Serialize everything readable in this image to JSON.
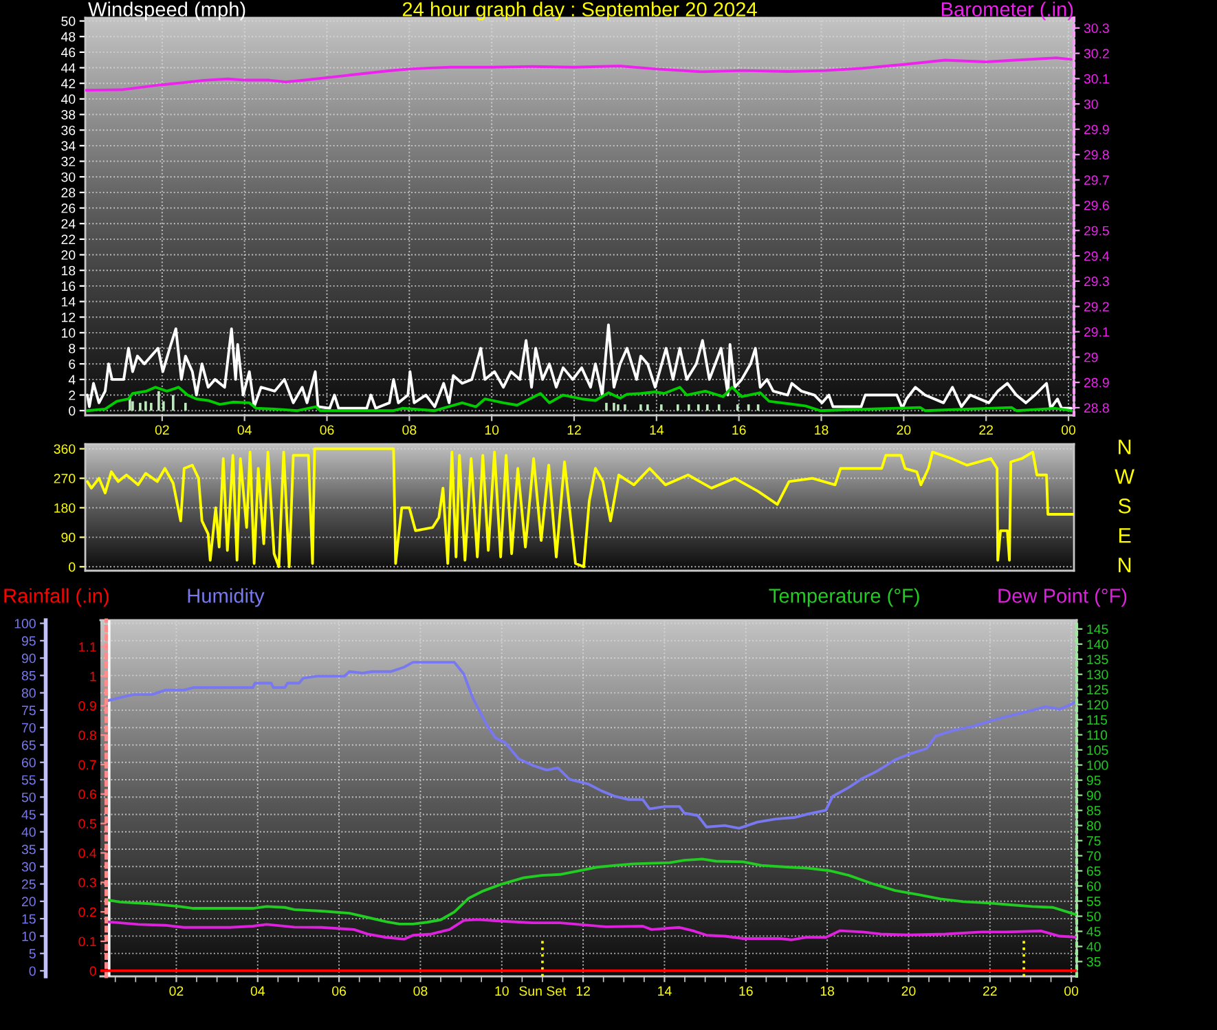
{
  "chart_data": [
    {
      "type": "line",
      "title": "24 hour graph day : September 20 2024",
      "legend": "top",
      "grid": true,
      "xlim": [
        "2024-09-20T00:08",
        "2024-09-21T00:08"
      ],
      "xticks": [
        {
          "value": "2024-09-20T02:00",
          "label": "02"
        },
        {
          "value": "2024-09-20T04:00",
          "label": "04"
        },
        {
          "value": "2024-09-20T06:00",
          "label": "06"
        },
        {
          "value": "2024-09-20T08:00",
          "label": "08"
        },
        {
          "value": "2024-09-20T10:00",
          "label": "10"
        },
        {
          "value": "2024-09-20T12:00",
          "label": "12"
        },
        {
          "value": "2024-09-20T14:00",
          "label": "14"
        },
        {
          "value": "2024-09-20T16:00",
          "label": "16"
        },
        {
          "value": "2024-09-20T18:00",
          "label": "18"
        },
        {
          "value": "2024-09-20T20:00",
          "label": "20"
        },
        {
          "value": "2024-09-20T22:00",
          "label": "22"
        },
        {
          "value": "2024-09-21T00:00",
          "label": "00"
        }
      ],
      "ylim": [
        -0.6,
        50.4
      ],
      "yticks": [
        0,
        2,
        4,
        6,
        8,
        10,
        12,
        14,
        16,
        18,
        20,
        22,
        24,
        26,
        28,
        30,
        32,
        34,
        36,
        38,
        40,
        42,
        44,
        46,
        48,
        50
      ],
      "y2lim": [
        28.77,
        30.34
      ],
      "y2ticks": [
        28.8,
        28.9,
        29,
        29.1,
        29.2,
        29.3,
        29.4,
        29.5,
        29.6,
        29.7,
        29.8,
        29.9,
        30,
        30.1,
        30.2,
        30.3
      ],
      "series": [
        {
          "name": "Windspeed (mph)",
          "color": "#ffffff",
          "x": [
            "2024-09-20T00:11",
            "2024-09-20T00:14",
            "2024-09-20T00:20",
            "2024-09-20T00:28",
            "2024-09-20T00:37",
            "2024-09-20T00:42",
            "2024-09-20T00:47",
            "2024-09-20T01:04",
            "2024-09-20T01:11",
            "2024-09-20T01:17",
            "2024-09-20T01:24",
            "2024-09-20T01:34",
            "2024-09-20T01:44",
            "2024-09-20T01:54",
            "2024-09-20T02:01",
            "2024-09-20T02:11",
            "2024-09-20T02:20",
            "2024-09-20T02:28",
            "2024-09-20T02:34",
            "2024-09-20T02:44",
            "2024-09-20T02:50",
            "2024-09-20T02:58",
            "2024-09-20T03:07",
            "2024-09-20T03:17",
            "2024-09-20T03:31",
            "2024-09-20T03:41",
            "2024-09-20T03:47",
            "2024-09-20T03:50",
            "2024-09-20T03:58",
            "2024-09-20T04:07",
            "2024-09-20T04:14",
            "2024-09-20T04:24",
            "2024-09-20T04:44",
            "2024-09-20T04:58",
            "2024-09-20T05:11",
            "2024-09-20T05:24",
            "2024-09-20T05:31",
            "2024-09-20T05:43",
            "2024-09-20T05:47",
            "2024-09-20T06:04",
            "2024-09-20T06:11",
            "2024-09-20T06:17",
            "2024-09-20T06:58",
            "2024-09-20T07:04",
            "2024-09-20T07:11",
            "2024-09-20T07:31",
            "2024-09-20T07:37",
            "2024-09-20T07:44",
            "2024-09-20T07:58",
            "2024-09-20T08:01",
            "2024-09-20T08:07",
            "2024-09-20T08:24",
            "2024-09-20T08:37",
            "2024-09-20T08:50",
            "2024-09-20T08:58",
            "2024-09-20T09:04",
            "2024-09-20T09:17",
            "2024-09-20T09:31",
            "2024-09-20T09:44",
            "2024-09-20T09:50",
            "2024-09-20T10:04",
            "2024-09-20T10:17",
            "2024-09-20T10:28",
            "2024-09-20T10:41",
            "2024-09-20T10:50",
            "2024-09-20T10:58",
            "2024-09-20T11:04",
            "2024-09-20T11:14",
            "2024-09-20T11:24",
            "2024-09-20T11:34",
            "2024-09-20T11:44",
            "2024-09-20T11:58",
            "2024-09-20T12:11",
            "2024-09-20T12:24",
            "2024-09-20T12:31",
            "2024-09-20T12:41",
            "2024-09-20T12:50",
            "2024-09-20T12:58",
            "2024-09-20T13:07",
            "2024-09-20T13:17",
            "2024-09-20T13:31",
            "2024-09-20T13:37",
            "2024-09-20T13:47",
            "2024-09-20T13:58",
            "2024-09-20T14:14",
            "2024-09-20T14:24",
            "2024-09-20T14:34",
            "2024-09-20T14:44",
            "2024-09-20T14:58",
            "2024-09-20T15:07",
            "2024-09-20T15:17",
            "2024-09-20T15:34",
            "2024-09-20T15:44",
            "2024-09-20T15:47",
            "2024-09-20T15:54",
            "2024-09-20T16:04",
            "2024-09-20T16:17",
            "2024-09-20T16:24",
            "2024-09-20T16:31",
            "2024-09-20T16:41",
            "2024-09-20T16:50",
            "2024-09-20T17:11",
            "2024-09-20T17:17",
            "2024-09-20T17:31",
            "2024-09-20T17:50",
            "2024-09-20T18:01",
            "2024-09-20T18:11",
            "2024-09-20T18:17",
            "2024-09-20T18:58",
            "2024-09-20T19:04",
            "2024-09-20T19:50",
            "2024-09-20T19:58",
            "2024-09-20T20:04",
            "2024-09-20T20:17",
            "2024-09-20T20:31",
            "2024-09-20T20:58",
            "2024-09-20T21:11",
            "2024-09-20T21:24",
            "2024-09-20T21:37",
            "2024-09-20T22:04",
            "2024-09-20T22:17",
            "2024-09-20T22:31",
            "2024-09-20T22:44",
            "2024-09-20T22:58",
            "2024-09-20T23:11",
            "2024-09-20T23:28",
            "2024-09-20T23:34",
            "2024-09-20T23:44",
            "2024-09-20T23:50",
            "2024-09-21T00:04"
          ],
          "values": [
            2,
            0.5,
            3.5,
            1,
            2.5,
            6,
            4,
            4,
            8,
            5,
            7,
            6,
            7,
            8,
            5,
            8,
            10.5,
            4,
            7,
            5,
            2,
            6,
            3,
            4,
            3,
            10.5,
            4,
            8.5,
            2,
            5,
            0.5,
            3,
            2.5,
            4,
            1,
            3,
            1,
            5,
            0.5,
            0.3,
            2,
            0.3,
            0.3,
            2,
            0.3,
            1,
            4,
            1,
            2,
            5,
            1,
            2,
            0.5,
            3.5,
            1,
            4.5,
            3.5,
            4,
            8,
            4,
            5,
            3,
            5,
            4,
            9,
            3,
            8,
            4,
            6,
            3,
            5.5,
            4,
            5.5,
            3,
            6,
            2,
            11,
            3,
            6,
            8,
            4,
            7,
            6,
            3,
            8,
            4,
            8,
            4,
            6,
            9,
            4,
            8,
            2,
            8.5,
            3,
            4,
            6,
            8,
            3,
            4,
            2.5,
            2,
            3.5,
            2.5,
            2,
            1,
            2,
            0.5,
            0.5,
            2,
            2,
            0.3,
            1.5,
            3,
            2,
            1,
            3,
            0.5,
            2,
            1,
            2.5,
            3.5,
            2,
            1,
            2,
            3.5,
            0.3,
            1.5,
            0.3,
            0.3
          ]
        },
        {
          "type": "bar",
          "color": "#c0e8c0",
          "x": [
            "2024-09-20T01:13",
            "2024-09-20T01:17",
            "2024-09-20T01:28",
            "2024-09-20T01:36",
            "2024-09-20T01:44",
            "2024-09-20T01:55",
            "2024-09-20T02:02",
            "2024-09-20T02:16",
            "2024-09-20T02:34",
            "2024-09-20T12:47",
            "2024-09-20T12:58",
            "2024-09-20T13:04",
            "2024-09-20T13:14",
            "2024-09-20T13:37",
            "2024-09-20T13:47",
            "2024-09-20T14:07",
            "2024-09-20T14:31",
            "2024-09-20T14:47",
            "2024-09-20T15:01",
            "2024-09-20T15:14",
            "2024-09-20T15:31",
            "2024-09-20T15:58",
            "2024-09-20T16:14",
            "2024-09-20T16:28"
          ],
          "values": [
            1.8,
            1.2,
            1,
            1.2,
            1,
            2.5,
            1.2,
            2,
            1,
            1,
            1,
            0.8,
            0.8,
            0.8,
            0.8,
            0.8,
            0.8,
            0.8,
            0.8,
            0.8,
            0.8,
            0.8,
            0.8,
            0.8
          ]
        },
        {
          "color": "#00cc00",
          "x": [
            "2024-09-20T00:11",
            "2024-09-20T00:37",
            "2024-09-20T00:54",
            "2024-09-20T01:11",
            "2024-09-20T01:17",
            "2024-09-20T01:37",
            "2024-09-20T01:50",
            "2024-09-20T02:07",
            "2024-09-20T02:24",
            "2024-09-20T02:37",
            "2024-09-20T02:50",
            "2024-09-20T03:07",
            "2024-09-20T03:24",
            "2024-09-20T03:44",
            "2024-09-20T04:07",
            "2024-09-20T04:17",
            "2024-09-20T04:44",
            "2024-09-20T05:17",
            "2024-09-20T05:44",
            "2024-09-20T05:50",
            "2024-09-20T07:37",
            "2024-09-20T07:50",
            "2024-09-20T08:37",
            "2024-09-20T09:17",
            "2024-09-20T09:37",
            "2024-09-20T09:50",
            "2024-09-20T10:17",
            "2024-09-20T10:37",
            "2024-09-20T11:11",
            "2024-09-20T11:24",
            "2024-09-20T11:44",
            "2024-09-20T12:11",
            "2024-09-20T12:31",
            "2024-09-20T12:50",
            "2024-09-20T13:07",
            "2024-09-20T13:17",
            "2024-09-20T13:37",
            "2024-09-20T13:58",
            "2024-09-20T14:11",
            "2024-09-20T14:34",
            "2024-09-20T14:44",
            "2024-09-20T15:11",
            "2024-09-20T15:37",
            "2024-09-20T15:50",
            "2024-09-20T16:04",
            "2024-09-20T16:31",
            "2024-09-20T16:44",
            "2024-09-20T17:11",
            "2024-09-20T17:37",
            "2024-09-20T17:58",
            "2024-09-20T20:24",
            "2024-09-20T20:31",
            "2024-09-20T22:37",
            "2024-09-20T22:44",
            "2024-09-20T23:41",
            "2024-09-21T00:04"
          ],
          "values": [
            0,
            0.2,
            1.2,
            1.5,
            2.2,
            2.5,
            3,
            2.5,
            3,
            2,
            1.5,
            1.3,
            0.8,
            1.1,
            1,
            0.3,
            0.2,
            0,
            0.5,
            0,
            0,
            0.3,
            0,
            1,
            0.5,
            1.5,
            1,
            0.7,
            2.2,
            1,
            2,
            1.5,
            1.3,
            2.3,
            1.6,
            2.1,
            2.2,
            2.4,
            2.2,
            3,
            2,
            2.5,
            1.8,
            3,
            1.8,
            2.3,
            1.2,
            0.9,
            0.6,
            0,
            0.4,
            0,
            0.4,
            0,
            0.3,
            0
          ]
        },
        {
          "name": "Barometer (.in)",
          "color": "#ee22ee",
          "axis": "y2",
          "x": [
            "2024-09-20T00:09",
            "2024-09-20T00:36",
            "2024-09-20T01:00",
            "2024-09-20T01:30",
            "2024-09-20T02:00",
            "2024-09-20T02:30",
            "2024-09-20T03:00",
            "2024-09-20T03:36",
            "2024-09-20T04:00",
            "2024-09-20T04:36",
            "2024-09-20T05:00",
            "2024-09-20T05:30",
            "2024-09-20T06:00",
            "2024-09-20T06:30",
            "2024-09-20T07:00",
            "2024-09-20T07:30",
            "2024-09-20T08:00",
            "2024-09-20T08:30",
            "2024-09-20T09:00",
            "2024-09-20T10:00",
            "2024-09-20T11:00",
            "2024-09-20T12:00",
            "2024-09-20T13:06",
            "2024-09-20T14:00",
            "2024-09-20T15:06",
            "2024-09-20T16:06",
            "2024-09-20T17:12",
            "2024-09-20T18:06",
            "2024-09-20T19:00",
            "2024-09-20T20:00",
            "2024-09-20T21:00",
            "2024-09-20T22:00",
            "2024-09-20T22:42",
            "2024-09-20T23:42",
            "2024-09-21T00:04"
          ],
          "values": [
            30.054,
            30.055,
            30.056,
            30.066,
            30.076,
            30.084,
            30.093,
            30.099,
            30.094,
            30.094,
            30.087,
            30.095,
            30.104,
            30.113,
            30.122,
            30.131,
            30.138,
            30.142,
            30.145,
            30.145,
            30.148,
            30.145,
            30.15,
            30.138,
            30.127,
            30.132,
            30.128,
            30.132,
            30.141,
            30.156,
            30.173,
            30.166,
            30.173,
            30.182,
            30.176
          ]
        }
      ]
    },
    {
      "type": "line",
      "grid": "y",
      "tick_labels": "y",
      "xlim": [
        "2024-09-20T00:08",
        "2024-09-21T00:08"
      ],
      "ylim": [
        -12,
        374
      ],
      "yticks": [
        0,
        90,
        180,
        270,
        360
      ],
      "annotations": [
        "N",
        "W",
        "S",
        "E",
        "N"
      ],
      "series": [
        {
          "color": "#ffff00",
          "x": [
            "2024-09-20T00:11",
            "2024-09-20T00:17",
            "2024-09-20T00:28",
            "2024-09-20T00:37",
            "2024-09-20T00:46",
            "2024-09-20T00:56",
            "2024-09-20T01:08",
            "2024-09-20T01:25",
            "2024-09-20T01:36",
            "2024-09-20T01:53",
            "2024-09-20T02:04",
            "2024-09-20T02:16",
            "2024-09-20T02:27",
            "2024-09-20T02:32",
            "2024-09-20T02:44",
            "2024-09-20T02:53",
            "2024-09-20T02:58",
            "2024-09-20T03:07",
            "2024-09-20T03:10",
            "2024-09-20T03:18",
            "2024-09-20T03:23",
            "2024-09-20T03:29",
            "2024-09-20T03:35",
            "2024-09-20T03:43",
            "2024-09-20T03:49",
            "2024-09-20T03:54",
            "2024-09-20T04:03",
            "2024-09-20T04:08",
            "2024-09-20T04:14",
            "2024-09-20T04:20",
            "2024-09-20T04:28",
            "2024-09-20T04:34",
            "2024-09-20T04:43",
            "2024-09-20T04:50",
            "2024-09-20T04:57",
            "2024-09-20T05:05",
            "2024-09-20T05:11",
            "2024-09-20T05:33",
            "2024-09-20T05:39",
            "2024-09-20T05:42",
            "2024-09-20T07:37",
            "2024-09-20T07:40",
            "2024-09-20T07:43",
            "2024-09-20T07:49",
            "2024-09-20T08:00",
            "2024-09-20T08:09",
            "2024-09-20T08:34",
            "2024-09-20T08:43",
            "2024-09-20T08:49",
            "2024-09-20T08:56",
            "2024-09-20T09:02",
            "2024-09-20T09:08",
            "2024-09-20T09:13",
            "2024-09-20T09:21",
            "2024-09-20T09:30",
            "2024-09-20T09:39",
            "2024-09-20T09:47",
            "2024-09-20T09:55",
            "2024-09-20T10:04",
            "2024-09-20T10:13",
            "2024-09-20T10:21",
            "2024-09-20T10:29",
            "2024-09-20T10:38",
            "2024-09-20T10:49",
            "2024-09-20T11:01",
            "2024-09-20T11:12",
            "2024-09-20T11:23",
            "2024-09-20T11:34",
            "2024-09-20T11:46",
            "2024-09-20T12:02",
            "2024-09-20T12:14",
            "2024-09-20T12:22",
            "2024-09-20T12:31",
            "2024-09-20T12:42",
            "2024-09-20T12:53",
            "2024-09-20T13:05",
            "2024-09-20T13:27",
            "2024-09-20T13:50",
            "2024-09-20T14:13",
            "2024-09-20T14:46",
            "2024-09-20T15:20",
            "2024-09-20T15:54",
            "2024-09-20T16:28",
            "2024-09-20T16:56",
            "2024-09-20T17:13",
            "2024-09-20T17:47",
            "2024-09-20T18:20",
            "2024-09-20T18:28",
            "2024-09-20T19:28",
            "2024-09-20T19:34",
            "2024-09-20T19:56",
            "2024-09-20T20:02",
            "2024-09-20T20:19",
            "2024-09-20T20:25",
            "2024-09-20T20:36",
            "2024-09-20T20:42",
            "2024-09-20T21:10",
            "2024-09-20T21:32",
            "2024-09-20T22:07",
            "2024-09-20T22:16",
            "2024-09-20T22:17",
            "2024-09-20T22:21",
            "2024-09-20T22:31",
            "2024-09-20T22:34",
            "2024-09-20T22:36",
            "2024-09-20T22:52",
            "2024-09-20T23:08",
            "2024-09-20T23:14",
            "2024-09-20T23:28",
            "2024-09-20T23:30",
            "2024-09-21T00:07"
          ],
          "values": [
            260,
            240,
            270,
            225,
            290,
            260,
            280,
            250,
            285,
            260,
            300,
            255,
            140,
            300,
            310,
            270,
            140,
            100,
            20,
            180,
            60,
            330,
            50,
            340,
            20,
            330,
            120,
            350,
            10,
            300,
            70,
            350,
            40,
            0,
            350,
            0,
            340,
            340,
            10,
            360,
            360,
            10,
            70,
            180,
            180,
            110,
            120,
            150,
            240,
            10,
            350,
            30,
            340,
            20,
            330,
            30,
            340,
            50,
            350,
            30,
            340,
            40,
            300,
            60,
            330,
            80,
            310,
            30,
            320,
            10,
            0,
            200,
            300,
            260,
            140,
            280,
            250,
            300,
            250,
            280,
            240,
            270,
            230,
            190,
            260,
            270,
            250,
            300,
            300,
            340,
            340,
            300,
            290,
            250,
            300,
            350,
            330,
            310,
            330,
            300,
            20,
            110,
            110,
            20,
            320,
            330,
            350,
            280,
            280,
            160,
            160
          ]
        }
      ]
    },
    {
      "type": "line",
      "legend": "top",
      "grid": true,
      "xlim": [
        "2024-09-20T00:08",
        "2024-09-21T00:08"
      ],
      "xticks": [
        {
          "value": "2024-09-20T00:30",
          "label": null
        },
        {
          "value": "2024-09-20T01:00",
          "label": null
        },
        {
          "value": "2024-09-20T01:30",
          "label": null
        },
        {
          "value": "2024-09-20T02:00",
          "label": "02"
        },
        {
          "value": "2024-09-20T02:30",
          "label": null
        },
        {
          "value": "2024-09-20T03:00",
          "label": null
        },
        {
          "value": "2024-09-20T03:30",
          "label": null
        },
        {
          "value": "2024-09-20T04:00",
          "label": "04"
        },
        {
          "value": "2024-09-20T04:30",
          "label": null
        },
        {
          "value": "2024-09-20T05:00",
          "label": null
        },
        {
          "value": "2024-09-20T05:30",
          "label": null
        },
        {
          "value": "2024-09-20T06:00",
          "label": "06"
        },
        {
          "value": "2024-09-20T06:30",
          "label": null
        },
        {
          "value": "2024-09-20T07:00",
          "label": null
        },
        {
          "value": "2024-09-20T07:30",
          "label": null
        },
        {
          "value": "2024-09-20T08:00",
          "label": "08"
        },
        {
          "value": "2024-09-20T08:30",
          "label": null
        },
        {
          "value": "2024-09-20T09:00",
          "label": null
        },
        {
          "value": "2024-09-20T09:30",
          "label": null
        },
        {
          "value": "2024-09-20T10:00",
          "label": "10"
        },
        {
          "value": "2024-09-20T10:30",
          "label": null
        },
        {
          "value": "2024-09-20T11:00",
          "label": null
        },
        {
          "value": "2024-09-20T11:30",
          "label": null
        },
        {
          "value": "2024-09-20T12:00",
          "label": "12"
        },
        {
          "value": "2024-09-20T12:30",
          "label": null
        },
        {
          "value": "2024-09-20T13:00",
          "label": null
        },
        {
          "value": "2024-09-20T13:30",
          "label": null
        },
        {
          "value": "2024-09-20T14:00",
          "label": "14"
        },
        {
          "value": "2024-09-20T14:30",
          "label": null
        },
        {
          "value": "2024-09-20T15:00",
          "label": null
        },
        {
          "value": "2024-09-20T15:30",
          "label": null
        },
        {
          "value": "2024-09-20T16:00",
          "label": "16"
        },
        {
          "value": "2024-09-20T16:30",
          "label": null
        },
        {
          "value": "2024-09-20T17:00",
          "label": null
        },
        {
          "value": "2024-09-20T17:30",
          "label": null
        },
        {
          "value": "2024-09-20T18:00",
          "label": "18"
        },
        {
          "value": "2024-09-20T18:30",
          "label": null
        },
        {
          "value": "2024-09-20T19:00",
          "label": null
        },
        {
          "value": "2024-09-20T19:30",
          "label": null
        },
        {
          "value": "2024-09-20T20:00",
          "label": "20"
        },
        {
          "value": "2024-09-20T20:30",
          "label": null
        },
        {
          "value": "2024-09-20T21:00",
          "label": null
        },
        {
          "value": "2024-09-20T21:30",
          "label": null
        },
        {
          "value": "2024-09-20T22:00",
          "label": "22"
        },
        {
          "value": "2024-09-20T22:30",
          "label": null
        },
        {
          "value": "2024-09-20T23:00",
          "label": null
        },
        {
          "value": "2024-09-20T23:30",
          "label": null
        },
        {
          "value": "2024-09-21T00:00",
          "label": "00"
        }
      ],
      "ylim": [
        -1.6,
        100.9
      ],
      "yticks": [
        0,
        5,
        10,
        15,
        20,
        25,
        30,
        35,
        40,
        45,
        50,
        55,
        60,
        65,
        70,
        75,
        80,
        85,
        90,
        95,
        100
      ],
      "y2lim": [
        30.1,
        147.9
      ],
      "y2ticks": [
        35,
        40,
        45,
        50,
        55,
        60,
        65,
        70,
        75,
        80,
        85,
        90,
        95,
        100,
        105,
        110,
        115,
        120,
        125,
        130,
        135,
        140,
        145
      ],
      "y3lim": [
        -0.019,
        1.19
      ],
      "y3ticks": [
        0,
        0.1,
        0.2,
        0.3,
        0.4,
        0.5,
        0.6,
        0.7,
        0.8,
        0.9,
        1,
        1.1
      ],
      "ref_lines": [
        {
          "axis": "x",
          "value": "2024-09-20T00:21",
          "color": "#ffffff",
          "line_style": "solid"
        },
        {
          "axis": "x",
          "value": "2024-09-20T11:00",
          "label": "Sun Set",
          "color": "#ffff00",
          "line_style": "dotted"
        },
        {
          "axis": "x",
          "value": "2024-09-20T22:50",
          "color": "#ffff00",
          "line_style": "dotted"
        }
      ],
      "series": [
        {
          "name": "Rainfall (.in)",
          "color": "#ff0000",
          "axis": "y3",
          "x": [
            "2024-09-20T00:08",
            "2024-09-21T00:07"
          ],
          "values": [
            0,
            0
          ]
        },
        {
          "name": "Humidity",
          "color": "#7878f0",
          "x": [
            "2024-09-20T00:16",
            "2024-09-20T00:37",
            "2024-09-20T00:57",
            "2024-09-20T01:24",
            "2024-09-20T01:44",
            "2024-09-20T02:11",
            "2024-09-20T02:25",
            "2024-09-20T03:53",
            "2024-09-20T03:56",
            "2024-09-20T04:20",
            "2024-09-20T04:23",
            "2024-09-20T04:40",
            "2024-09-20T04:44",
            "2024-09-20T05:01",
            "2024-09-20T05:07",
            "2024-09-20T05:28",
            "2024-09-20T06:08",
            "2024-09-20T06:15",
            "2024-09-20T06:35",
            "2024-09-20T06:49",
            "2024-09-20T07:16",
            "2024-09-20T07:36",
            "2024-09-20T07:49",
            "2024-09-20T08:50",
            "2024-09-20T09:04",
            "2024-09-20T09:17",
            "2024-09-20T09:38",
            "2024-09-20T09:51",
            "2024-09-20T10:05",
            "2024-09-20T10:25",
            "2024-09-20T10:46",
            "2024-09-20T11:06",
            "2024-09-20T11:23",
            "2024-09-20T11:40",
            "2024-09-20T12:07",
            "2024-09-20T12:27",
            "2024-09-20T12:47",
            "2024-09-20T13:07",
            "2024-09-20T13:28",
            "2024-09-20T13:38",
            "2024-09-20T14:01",
            "2024-09-20T14:22",
            "2024-09-20T14:29",
            "2024-09-20T14:49",
            "2024-09-20T15:02",
            "2024-09-20T15:29",
            "2024-09-20T15:50",
            "2024-09-20T16:17",
            "2024-09-20T16:44",
            "2024-09-20T17:11",
            "2024-09-20T17:31",
            "2024-09-20T17:58",
            "2024-09-20T18:08",
            "2024-09-20T18:32",
            "2024-09-20T18:52",
            "2024-09-20T19:13",
            "2024-09-20T19:40",
            "2024-09-20T20:00",
            "2024-09-20T20:27",
            "2024-09-20T20:40",
            "2024-09-20T21:08",
            "2024-09-20T21:34",
            "2024-09-20T22:02",
            "2024-09-20T22:28",
            "2024-09-20T22:55",
            "2024-09-20T23:22",
            "2024-09-20T23:43",
            "2024-09-20T23:59",
            "2024-09-21T00:06"
          ],
          "values": [
            77.6,
            78.6,
            79.5,
            79.5,
            80.8,
            80.8,
            81.5,
            81.5,
            82.8,
            82.8,
            81.5,
            81.5,
            82.8,
            82.8,
            84.2,
            84.8,
            84.8,
            86.1,
            85.7,
            86.1,
            86.1,
            87.4,
            88.8,
            88.8,
            85.4,
            78.6,
            70.7,
            67.0,
            65.7,
            61.0,
            59.1,
            57.8,
            58.4,
            55.1,
            53.8,
            51.8,
            50.2,
            49.3,
            49.3,
            46.6,
            47.3,
            47.3,
            45.4,
            44.7,
            41.4,
            41.8,
            41.0,
            42.8,
            43.7,
            44.1,
            45.1,
            46.2,
            50.2,
            52.8,
            55.4,
            57.4,
            60.7,
            62.3,
            64.0,
            67.6,
            69.3,
            70.3,
            72.0,
            73.3,
            74.6,
            76.0,
            75.3,
            76.6,
            77.5
          ]
        },
        {
          "name": "Temperature (°F)",
          "color": "#22cc22",
          "axis": "y2",
          "x": [
            "2024-09-20T00:16",
            "2024-09-20T00:37",
            "2024-09-20T01:24",
            "2024-09-20T02:05",
            "2024-09-20T02:25",
            "2024-09-20T03:53",
            "2024-09-20T04:13",
            "2024-09-20T04:40",
            "2024-09-20T04:54",
            "2024-09-20T05:34",
            "2024-09-20T06:15",
            "2024-09-20T06:42",
            "2024-09-20T07:09",
            "2024-09-20T07:29",
            "2024-09-20T07:49",
            "2024-09-20T08:10",
            "2024-09-20T08:30",
            "2024-09-20T08:50",
            "2024-09-20T09:11",
            "2024-09-20T09:31",
            "2024-09-20T09:58",
            "2024-09-20T10:32",
            "2024-09-20T10:59",
            "2024-09-20T11:26",
            "2024-09-20T11:53",
            "2024-09-20T12:20",
            "2024-09-20T12:47",
            "2024-09-20T13:14",
            "2024-09-20T14:08",
            "2024-09-20T14:29",
            "2024-09-20T14:56",
            "2024-09-20T15:16",
            "2024-09-20T15:56",
            "2024-09-20T16:23",
            "2024-09-20T17:04",
            "2024-09-20T17:31",
            "2024-09-20T18:05",
            "2024-09-20T18:32",
            "2024-09-20T19:06",
            "2024-09-20T19:40",
            "2024-09-20T20:13",
            "2024-09-20T20:47",
            "2024-09-20T21:21",
            "2024-09-20T21:55",
            "2024-09-20T22:28",
            "2024-09-20T23:02",
            "2024-09-20T23:33",
            "2024-09-21T00:06"
          ],
          "values": [
            55.5,
            54.7,
            54.1,
            53.2,
            52.6,
            52.6,
            53.2,
            52.9,
            52.2,
            51.7,
            51.0,
            49.6,
            48.2,
            47.4,
            47.4,
            48.0,
            48.8,
            51.4,
            55.9,
            58.2,
            60.5,
            62.7,
            63.5,
            63.8,
            65.0,
            66.2,
            66.8,
            67.3,
            67.7,
            68.5,
            68.9,
            68.2,
            68.0,
            66.8,
            66.2,
            65.9,
            65.0,
            63.5,
            60.8,
            58.5,
            57.2,
            55.7,
            54.8,
            54.4,
            53.8,
            53.2,
            52.9,
            50.6
          ]
        },
        {
          "name": "Dew Point (°F)",
          "color": "#dd22dd",
          "axis": "y2",
          "x": [
            "2024-09-20T00:16",
            "2024-09-20T01:04",
            "2024-09-20T01:44",
            "2024-09-20T02:11",
            "2024-09-20T03:19",
            "2024-09-20T03:53",
            "2024-09-20T04:13",
            "2024-09-20T04:54",
            "2024-09-20T05:34",
            "2024-09-20T06:01",
            "2024-09-20T06:22",
            "2024-09-20T06:42",
            "2024-09-20T07:09",
            "2024-09-20T07:36",
            "2024-09-20T07:49",
            "2024-09-20T08:16",
            "2024-09-20T08:43",
            "2024-09-20T09:04",
            "2024-09-20T09:24",
            "2024-09-20T10:05",
            "2024-09-20T10:46",
            "2024-09-20T11:26",
            "2024-09-20T12:07",
            "2024-09-20T12:34",
            "2024-09-20T13:28",
            "2024-09-20T13:41",
            "2024-09-20T14:22",
            "2024-09-20T14:42",
            "2024-09-20T15:02",
            "2024-09-20T15:29",
            "2024-09-20T15:56",
            "2024-09-20T16:50",
            "2024-09-20T17:07",
            "2024-09-20T17:31",
            "2024-09-20T17:58",
            "2024-09-20T18:19",
            "2024-09-20T18:52",
            "2024-09-20T19:19",
            "2024-09-20T20:00",
            "2024-09-20T20:54",
            "2024-09-20T21:48",
            "2024-09-20T22:22",
            "2024-09-20T23:16",
            "2024-09-20T23:43",
            "2024-09-21T00:06"
          ],
          "values": [
            48.2,
            47.3,
            47.0,
            46.3,
            46.3,
            46.7,
            47.3,
            46.4,
            46.3,
            45.9,
            45.6,
            44.1,
            43.0,
            42.4,
            43.7,
            44.1,
            45.6,
            48.6,
            48.9,
            48.3,
            47.8,
            47.8,
            47.0,
            46.5,
            46.7,
            45.6,
            46.3,
            45.2,
            43.7,
            43.4,
            42.6,
            42.6,
            42.2,
            43.1,
            43.0,
            45.2,
            44.8,
            44.1,
            43.8,
            44.1,
            44.8,
            44.8,
            45.1,
            43.4,
            43.1
          ]
        }
      ]
    }
  ]
}
